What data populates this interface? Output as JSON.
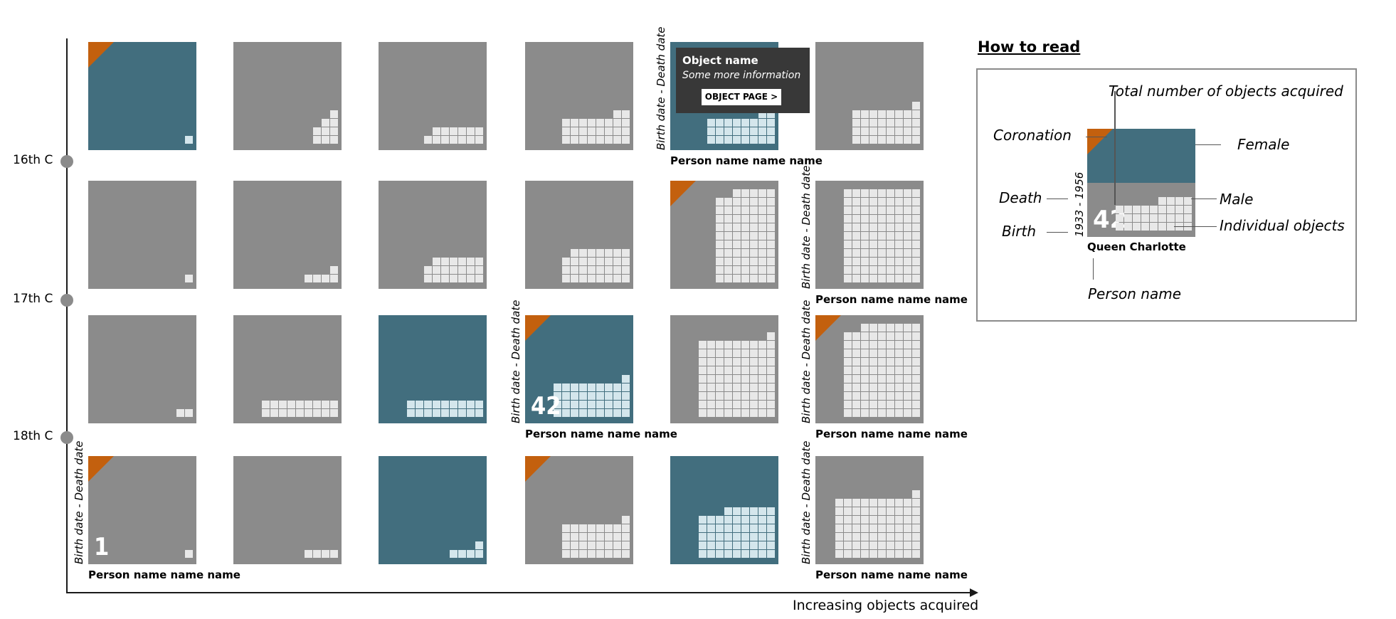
{
  "axis": {
    "centuries": [
      "16th C",
      "17th C",
      "18th C"
    ],
    "x_label": "Increasing objects acquired"
  },
  "tooltip": {
    "title": "Object name",
    "subtitle": "Some more information",
    "button": "OBJECT PAGE >"
  },
  "legend": {
    "title": "How to read",
    "total": "Total number of objects acquired",
    "coronation": "Coronation",
    "female": "Female",
    "death": "Death",
    "male": "Male",
    "individual": "Individual objects",
    "birth": "Birth",
    "dates": "1933 - 1956",
    "count": "42",
    "queen": "Queen Charlotte",
    "person": "Person name"
  },
  "colors": {
    "male_tile": "#8b8b8b",
    "female_tile": "#426e7e",
    "coronation": "#c3600e",
    "object": "#e8e8e8"
  },
  "rows": [
    [
      {
        "gender": "female",
        "coronation": true,
        "cols": [
          1
        ]
      },
      {
        "gender": "male",
        "cols": [
          2,
          3,
          4
        ]
      },
      {
        "gender": "male",
        "cols": [
          1,
          2,
          2,
          2,
          2,
          2,
          2
        ]
      },
      {
        "gender": "male",
        "cols": [
          3,
          3,
          3,
          3,
          3,
          3,
          4,
          4
        ]
      },
      {
        "gender": "female",
        "cols": [
          3,
          3,
          3,
          3,
          3,
          3,
          4,
          4
        ],
        "dates": "Birth date - Death date",
        "name": "Person name name name",
        "selected": true
      },
      {
        "gender": "male",
        "cols": [
          4,
          4,
          4,
          4,
          4,
          4,
          4,
          5
        ]
      }
    ],
    [
      {
        "gender": "male",
        "cols": [
          1
        ]
      },
      {
        "gender": "male",
        "cols": [
          1,
          1,
          1,
          2
        ]
      },
      {
        "gender": "male",
        "cols": [
          2,
          3,
          3,
          3,
          3,
          3,
          3
        ]
      },
      {
        "gender": "male",
        "cols": [
          3,
          4,
          4,
          4,
          4,
          4,
          4,
          4
        ]
      },
      {
        "gender": "male",
        "coronation": true,
        "cols": [
          10,
          10,
          11,
          11,
          11,
          11,
          11
        ]
      },
      {
        "gender": "male",
        "cols": [
          11,
          11,
          11,
          11,
          11,
          11,
          11,
          11,
          11
        ],
        "dates": "Birth date - Death date",
        "name": "Person name name name"
      }
    ],
    [
      {
        "gender": "male",
        "cols": [
          1,
          1
        ]
      },
      {
        "gender": "male",
        "cols": [
          2,
          2,
          2,
          2,
          2,
          2,
          2,
          2,
          2
        ]
      },
      {
        "gender": "female",
        "cols": [
          2,
          2,
          2,
          2,
          2,
          2,
          2,
          2,
          2
        ]
      },
      {
        "gender": "female",
        "coronation": true,
        "cols": [
          4,
          4,
          4,
          4,
          4,
          4,
          4,
          4,
          5
        ],
        "count": "42",
        "dates": "Birth date - Death date",
        "name": "Person name name name"
      },
      {
        "gender": "male",
        "cols": [
          9,
          9,
          9,
          9,
          9,
          9,
          9,
          9,
          10
        ]
      },
      {
        "gender": "male",
        "coronation": true,
        "cols": [
          10,
          10,
          11,
          11,
          11,
          11,
          11,
          11,
          11
        ],
        "dates": "Birth date - Death date",
        "name": "Person name name name"
      }
    ],
    [
      {
        "gender": "male",
        "coronation": true,
        "cols": [
          1
        ],
        "count": "1",
        "dates": "Birth date - Death date",
        "name": "Person name name name"
      },
      {
        "gender": "male",
        "cols": [
          1,
          1,
          1,
          1
        ]
      },
      {
        "gender": "female",
        "cols": [
          1,
          1,
          1,
          2
        ]
      },
      {
        "gender": "male",
        "coronation": true,
        "cols": [
          4,
          4,
          4,
          4,
          4,
          4,
          4,
          5
        ]
      },
      {
        "gender": "female",
        "cols": [
          5,
          5,
          5,
          6,
          6,
          6,
          6,
          6,
          6
        ]
      },
      {
        "gender": "male",
        "cols": [
          7,
          7,
          7,
          7,
          7,
          7,
          7,
          7,
          7,
          8
        ],
        "dates": "Birth date - Death date",
        "name": "Person name name name"
      }
    ]
  ]
}
